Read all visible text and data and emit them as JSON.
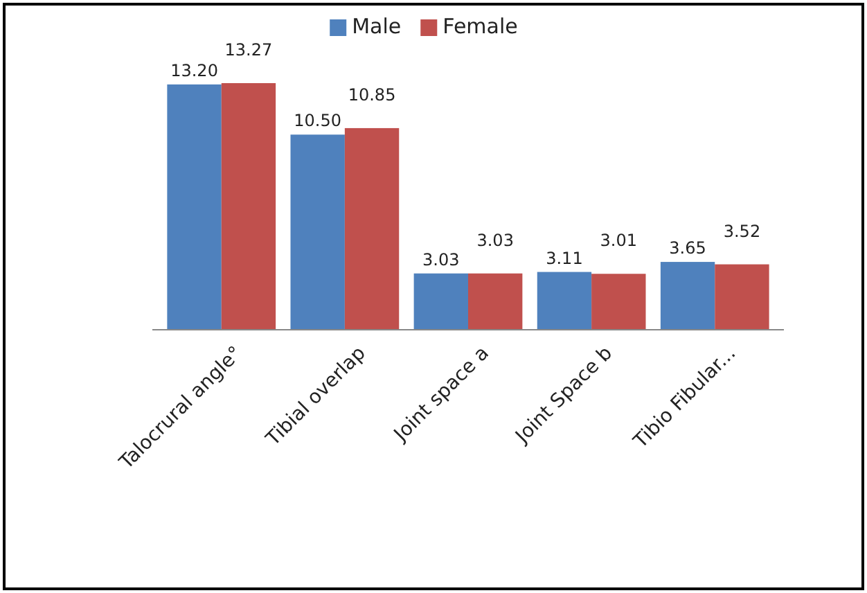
{
  "chart_data": {
    "type": "bar",
    "categories": [
      "Talocrural angle°",
      "Tibial overlap",
      "Joint space a",
      "Joint Space b",
      "Tibio Fibular..."
    ],
    "series": [
      {
        "name": "Male",
        "color": "#4f81bd",
        "values": [
          13.2,
          10.5,
          3.03,
          3.11,
          3.65
        ],
        "value_labels": [
          "13.20",
          "10.50",
          "3.03",
          "3.11",
          "3.65"
        ]
      },
      {
        "name": "Female",
        "color": "#c0504d",
        "values": [
          13.27,
          10.85,
          3.03,
          3.01,
          3.52
        ],
        "value_labels": [
          "13.27",
          "10.85",
          "3.03",
          "3.01",
          "3.52"
        ]
      }
    ],
    "legend": "top",
    "grid": false
  }
}
